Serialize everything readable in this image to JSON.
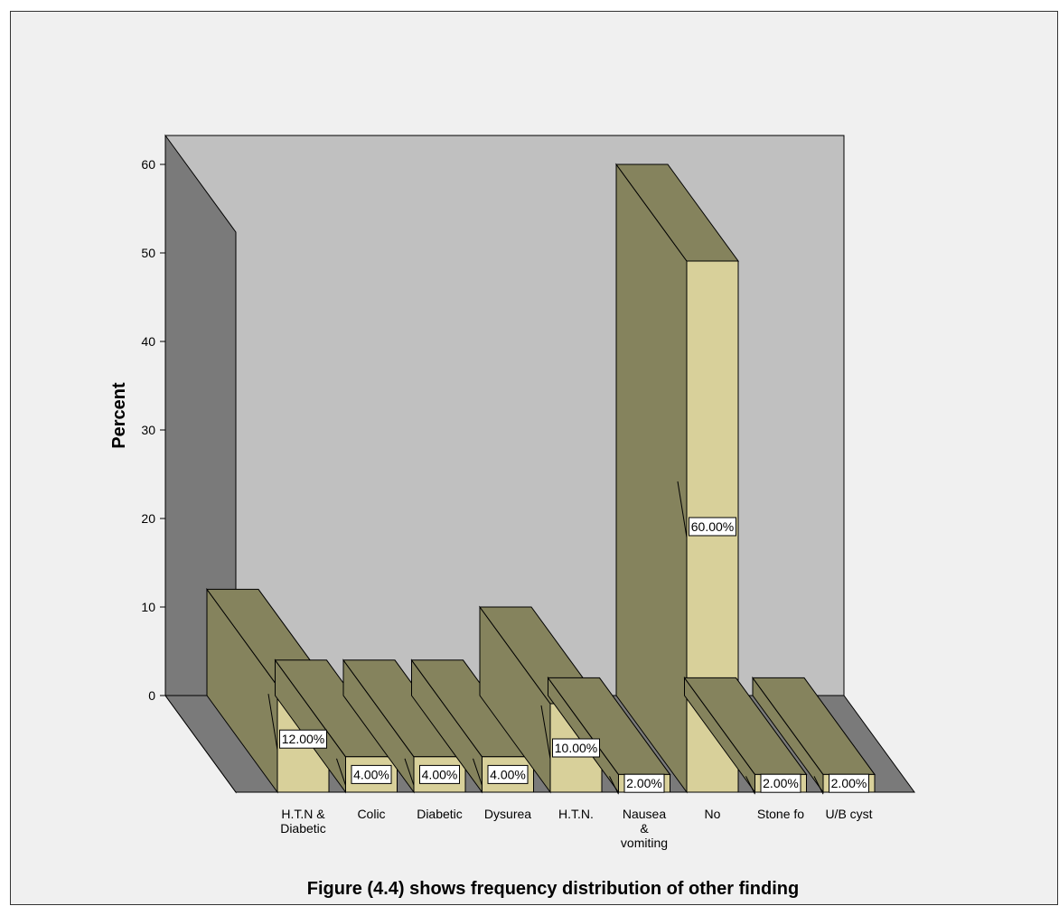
{
  "chart_data": {
    "type": "bar",
    "style": "3d",
    "title": "Figure (4.4) shows frequency distribution of other finding",
    "ylabel": "Percent",
    "xlabel": "",
    "ylim": [
      0,
      60
    ],
    "yticks": [
      "0",
      "10",
      "20",
      "30",
      "40",
      "50",
      "60"
    ],
    "grid": false,
    "legend": "none",
    "categories": [
      [
        "H.T.N &",
        "Diabetic"
      ],
      [
        "Colic"
      ],
      [
        "Diabetic"
      ],
      [
        "Dysurea"
      ],
      [
        "H.T.N."
      ],
      [
        "Nausea",
        "&",
        "vomiting"
      ],
      [
        "No"
      ],
      [
        "Stone fo"
      ],
      [
        "U/B cyst"
      ]
    ],
    "values": [
      12,
      4,
      4,
      4,
      10,
      2,
      60,
      2,
      2
    ],
    "data_labels": [
      "12.00%",
      "4.00%",
      "4.00%",
      "4.00%",
      "10.00%",
      "2.00%",
      "60.00%",
      "2.00%",
      "2.00%"
    ],
    "colors": {
      "bar_front": "#d8d09a",
      "bar_side": "#85835d",
      "back_wall": "#c0c0c0",
      "side_wall": "#7a7a7a",
      "floor": "#7a7a7a",
      "background": "#f0f0f0",
      "outline": "#000000"
    }
  }
}
